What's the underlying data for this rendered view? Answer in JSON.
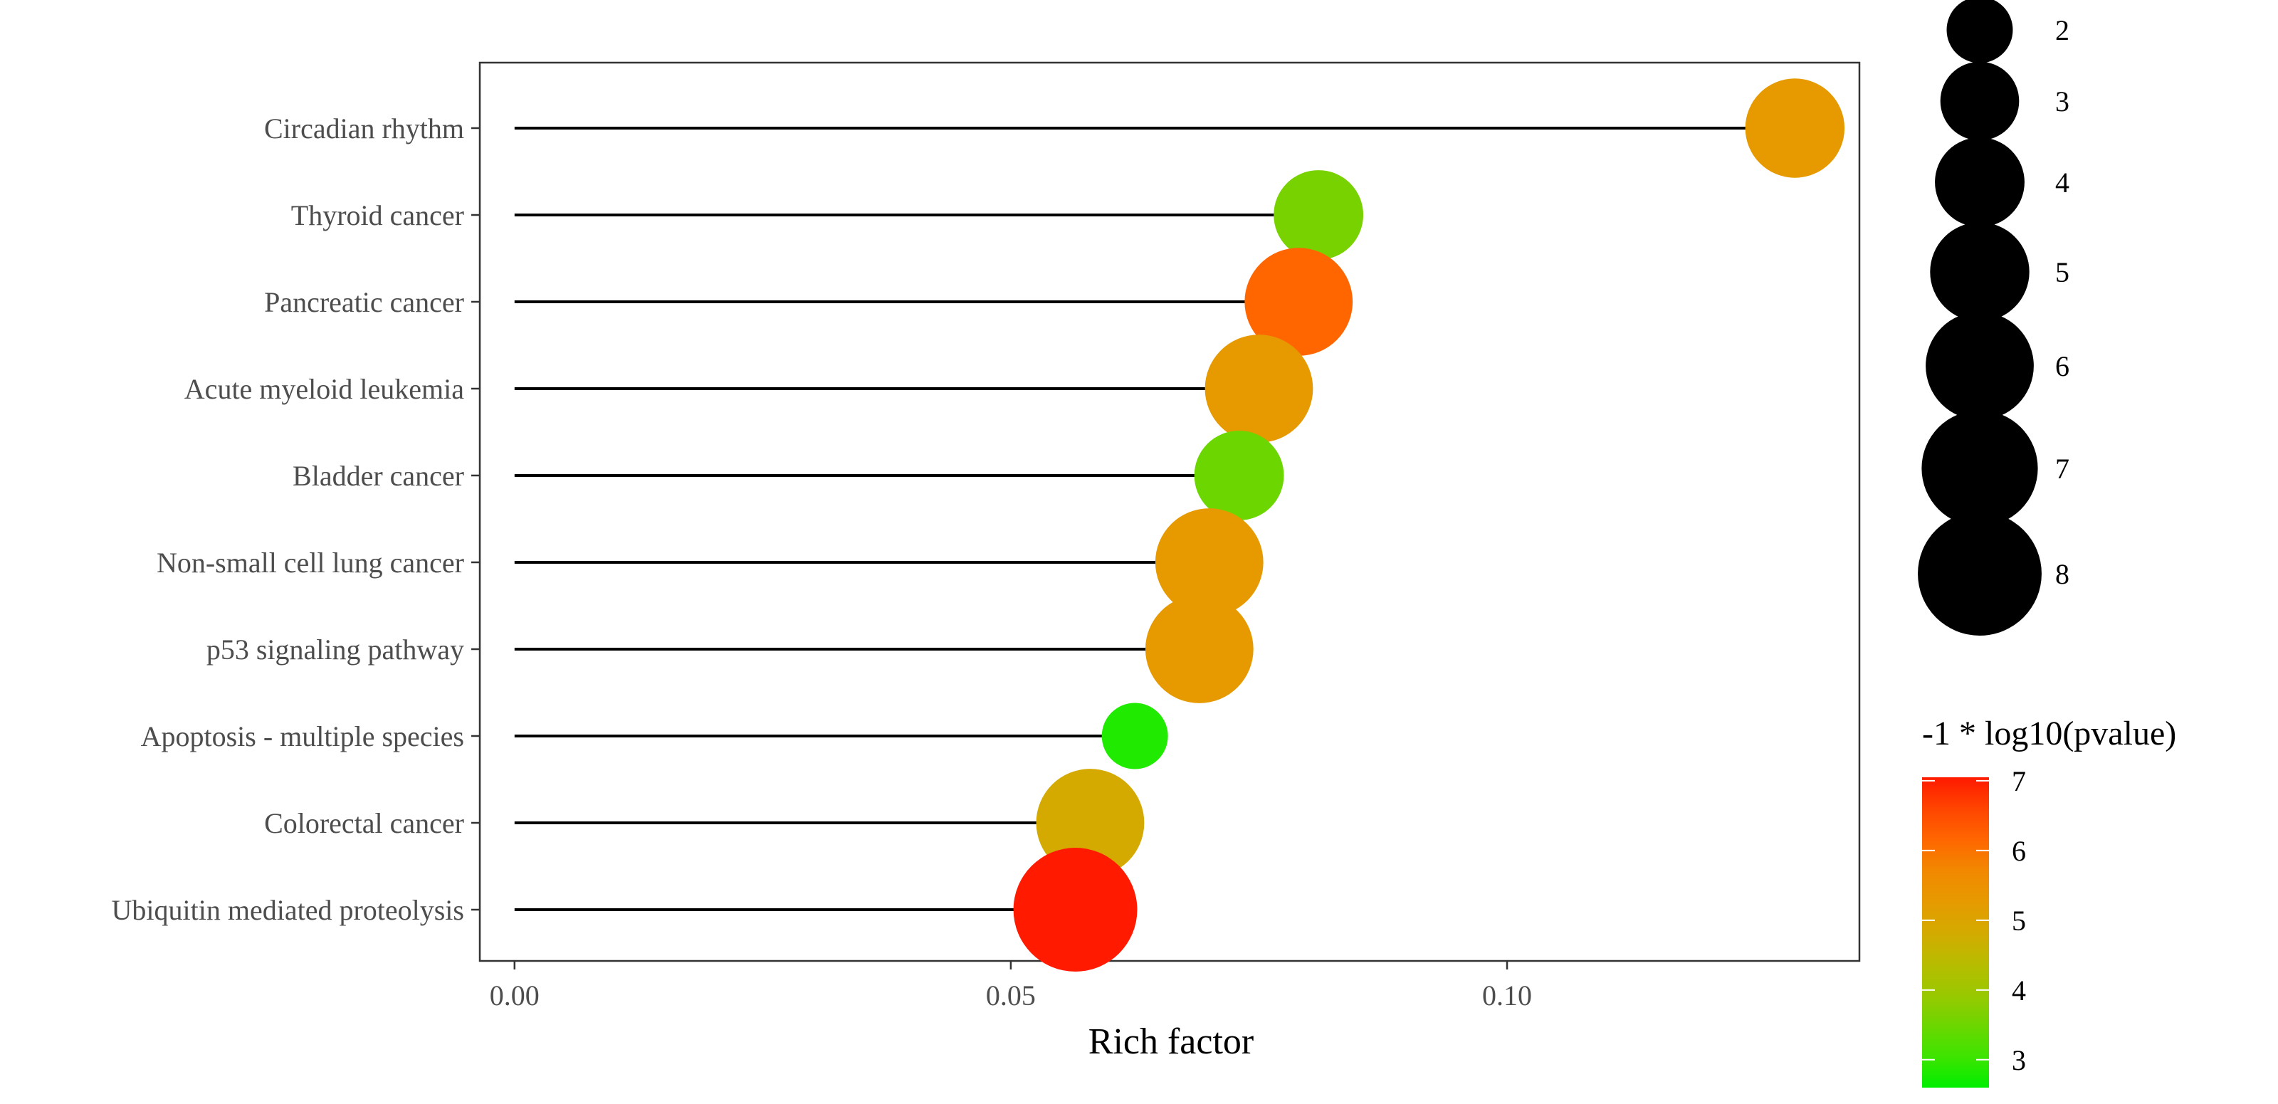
{
  "chart_data": {
    "type": "scatter",
    "subtype": "lollipop",
    "xlabel": "Rich factor",
    "ylabel": "",
    "xlim": [
      -0.0035,
      0.1355
    ],
    "x_ticks": [
      0.0,
      0.05,
      0.1
    ],
    "x_tick_labels": [
      "0.00",
      "0.05",
      "0.10"
    ],
    "grid": false,
    "categories": [
      "Circadian rhythm",
      "Thyroid cancer",
      "Pancreatic cancer",
      "Acute myeloid leukemia",
      "Bladder cancer",
      "Non-small cell lung cancer",
      "p53 signaling pathway",
      "Apoptosis - multiple species",
      "Colorectal cancer",
      "Ubiquitin mediated proteolysis"
    ],
    "points": [
      {
        "pathway": "Circadian rhythm",
        "rich_factor": 0.129,
        "count": 5,
        "neg_log10_pvalue": 5.0,
        "color": "#e69a00"
      },
      {
        "pathway": "Thyroid cancer",
        "rich_factor": 0.081,
        "count": 4,
        "neg_log10_pvalue": 3.6,
        "color": "#78d200"
      },
      {
        "pathway": "Pancreatic cancer",
        "rich_factor": 0.079,
        "count": 6,
        "neg_log10_pvalue": 6.0,
        "color": "#ff6600"
      },
      {
        "pathway": "Acute myeloid leukemia",
        "rich_factor": 0.075,
        "count": 6,
        "neg_log10_pvalue": 5.0,
        "color": "#e69a00"
      },
      {
        "pathway": "Bladder cancer",
        "rich_factor": 0.073,
        "count": 4,
        "neg_log10_pvalue": 3.5,
        "color": "#6cd600"
      },
      {
        "pathway": "Non-small cell lung cancer",
        "rich_factor": 0.07,
        "count": 6,
        "neg_log10_pvalue": 5.0,
        "color": "#e69a00"
      },
      {
        "pathway": "p53 signaling pathway",
        "rich_factor": 0.069,
        "count": 6,
        "neg_log10_pvalue": 5.0,
        "color": "#e69a00"
      },
      {
        "pathway": "Apoptosis - multiple species",
        "rich_factor": 0.0625,
        "count": 2,
        "neg_log10_pvalue": 2.8,
        "color": "#1fea00"
      },
      {
        "pathway": "Colorectal cancer",
        "rich_factor": 0.058,
        "count": 6,
        "neg_log10_pvalue": 4.5,
        "color": "#d4aa00"
      },
      {
        "pathway": "Ubiquitin mediated proteolysis",
        "rich_factor": 0.0565,
        "count": 8,
        "neg_log10_pvalue": 7.0,
        "color": "#ff1a00"
      }
    ],
    "size_legend": {
      "title": "",
      "values": [
        2,
        3,
        4,
        5,
        6,
        7,
        8
      ]
    },
    "color_legend": {
      "title": "-1 * log10(pvalue)",
      "tick_values": [
        7,
        6,
        5,
        4,
        3
      ],
      "tick_labels": [
        "7",
        "6",
        "5",
        "4",
        "3"
      ],
      "range": [
        2.6,
        7.05
      ],
      "colors": [
        "#ff1a00",
        "#ff4400",
        "#ff6600",
        "#f28800",
        "#e69a00",
        "#d4aa00",
        "#b8bc00",
        "#9ac800",
        "#6cd600",
        "#3ee400",
        "#00ee00"
      ]
    },
    "legend_placement": "right"
  }
}
